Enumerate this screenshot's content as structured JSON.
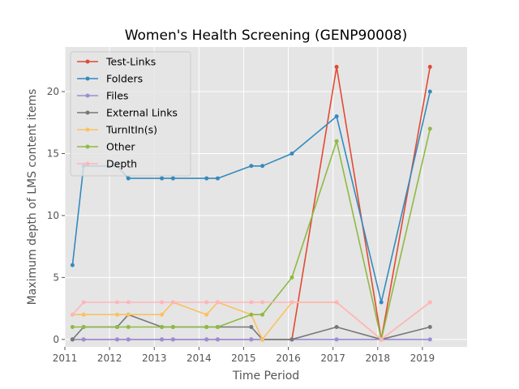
{
  "chart_data": {
    "type": "line",
    "title": "Women's Health Screening (GENP90008)",
    "xlabel": "Time Period",
    "ylabel": "Maximum depth of LMS content items",
    "xlim": [
      2011.0,
      2020.0
    ],
    "ylim": [
      -0.6,
      23.6
    ],
    "x_ticks": [
      2011,
      2012,
      2013,
      2014,
      2015,
      2016,
      2017,
      2018,
      2019
    ],
    "x_tick_labels": [
      "2011",
      "2012",
      "2013",
      "2014",
      "2015",
      "2016",
      "2017",
      "2018",
      "2019"
    ],
    "y_ticks": [
      0,
      5,
      10,
      15,
      20
    ],
    "y_tick_labels": [
      "0",
      "5",
      "10",
      "15",
      "20"
    ],
    "grid": true,
    "legend_position": "upper-left",
    "x": [
      2011.17,
      2011.42,
      2012.17,
      2012.42,
      2013.17,
      2013.42,
      2014.17,
      2014.42,
      2015.17,
      2015.42,
      2016.08,
      2017.08,
      2018.08,
      2019.17
    ],
    "series": [
      {
        "name": "Test-Links",
        "color": "#e24a33",
        "values": [
          0,
          0,
          0,
          0,
          0,
          0,
          0,
          0,
          0,
          0,
          0,
          22,
          0,
          22
        ]
      },
      {
        "name": "Folders",
        "color": "#348abd",
        "values": [
          6,
          14,
          14,
          13,
          13,
          13,
          13,
          13,
          14,
          14,
          15,
          18,
          3,
          20
        ]
      },
      {
        "name": "Files",
        "color": "#988ed5",
        "values": [
          0,
          0,
          0,
          0,
          0,
          0,
          0,
          0,
          0,
          0,
          0,
          0,
          0,
          0
        ]
      },
      {
        "name": "External Links",
        "color": "#777777",
        "values": [
          0,
          1,
          1,
          2,
          1,
          1,
          1,
          1,
          1,
          0,
          0,
          1,
          0,
          1
        ]
      },
      {
        "name": "TurnItIn(s)",
        "color": "#fbc15e",
        "values": [
          2,
          2,
          2,
          2,
          2,
          3,
          2,
          3,
          2,
          0,
          3,
          3,
          0,
          3
        ]
      },
      {
        "name": "Other",
        "color": "#8eba42",
        "values": [
          1,
          1,
          1,
          1,
          1,
          1,
          1,
          1,
          2,
          2,
          5,
          16,
          0,
          17
        ]
      },
      {
        "name": "Depth",
        "color": "#ffb5b8",
        "values": [
          2,
          3,
          3,
          3,
          3,
          3,
          3,
          3,
          3,
          3,
          3,
          3,
          0,
          3
        ]
      }
    ]
  }
}
